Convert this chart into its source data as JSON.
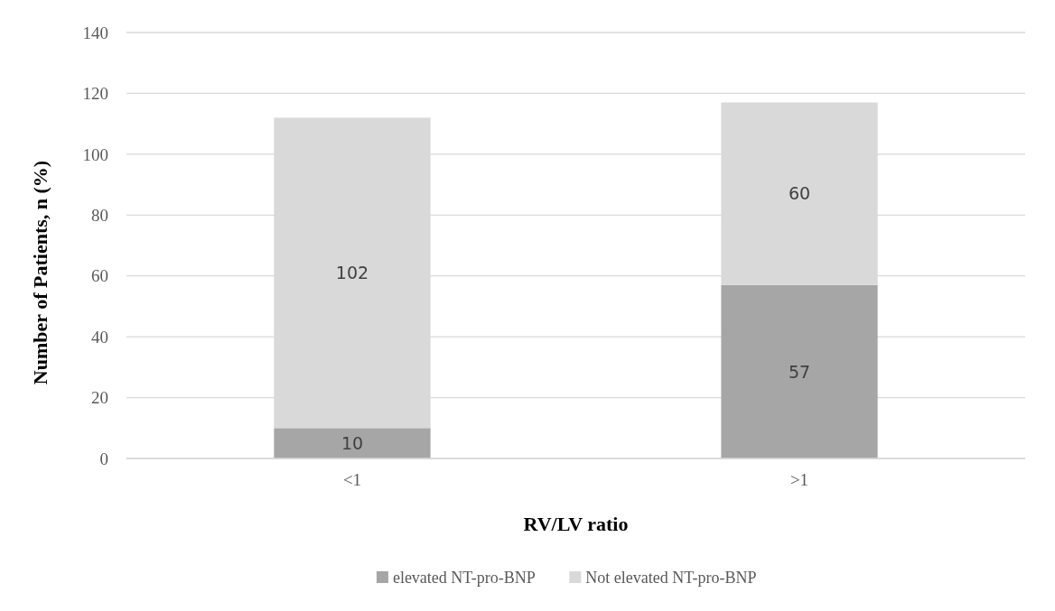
{
  "chart_data": {
    "type": "bar",
    "stacked": true,
    "xlabel": "RV/LV ratio",
    "ylabel": "Number of Patients, n (%)",
    "categories": [
      "<1",
      ">1"
    ],
    "series": [
      {
        "name": "elevated NT-pro-BNP",
        "color": "#a6a6a6",
        "values": [
          10,
          57
        ]
      },
      {
        "name": "Not elevated NT-pro-BNP",
        "color": "#d9d9d9",
        "values": [
          102,
          60
        ]
      }
    ],
    "ylim": [
      0,
      140
    ],
    "yticks": [
      0,
      20,
      40,
      60,
      80,
      100,
      120,
      140
    ],
    "grid": "y",
    "legend": "bottom",
    "data_labels": true
  }
}
